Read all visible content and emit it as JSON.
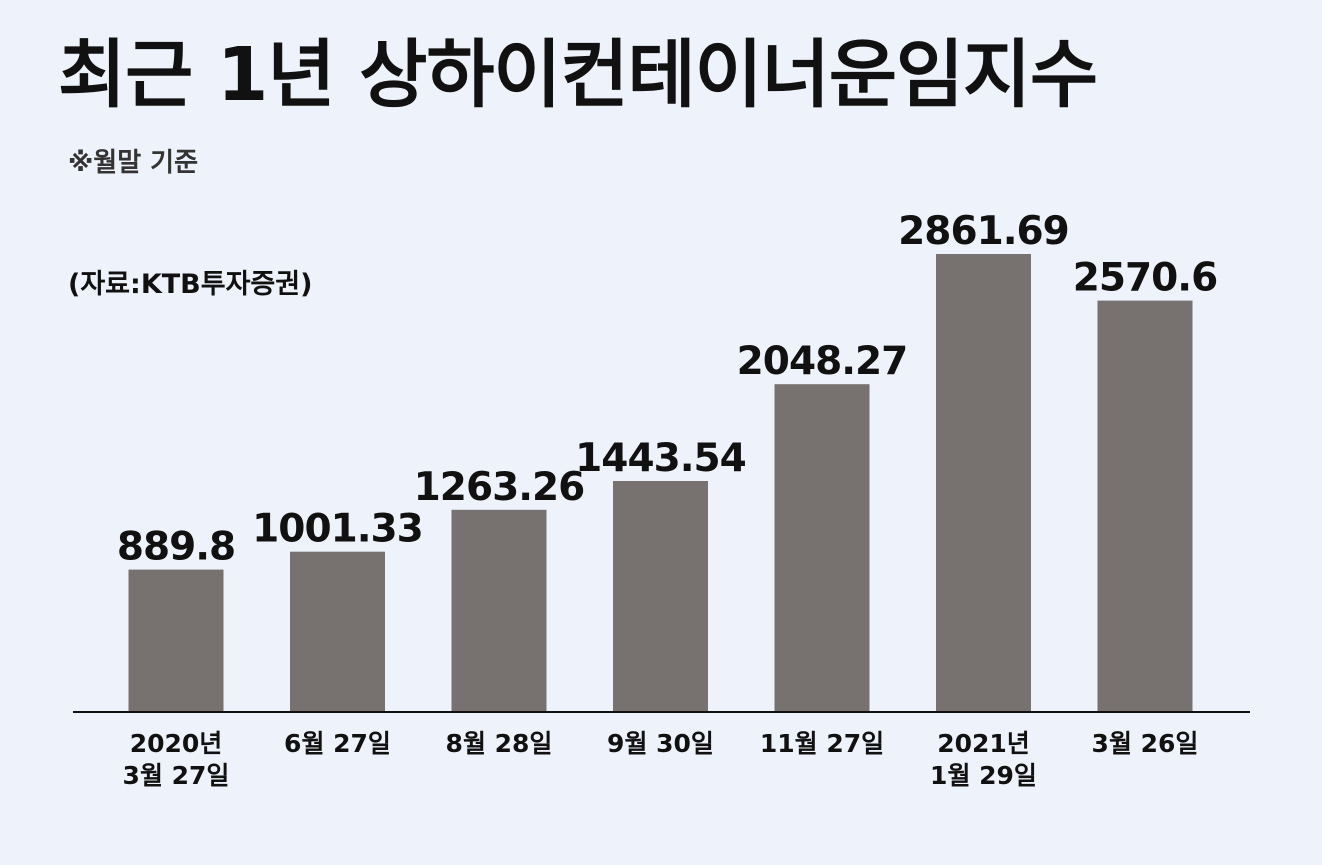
{
  "header": {
    "title": "최근 1년 상하이컨테이너운임지수",
    "subtitle": "※월말 기준",
    "source": "(자료:KTB투자증권)"
  },
  "colors": {
    "background": "#eef2fb",
    "bar": "#777170",
    "text": "#111111"
  },
  "chart_data": {
    "type": "bar",
    "title": "최근 1년 상하이컨테이너운임지수",
    "subtitle": "※월말 기준",
    "xlabel": "",
    "ylabel": "",
    "ylim": [
      0,
      3000
    ],
    "grid": false,
    "legend": "none",
    "categories": [
      [
        "2020년",
        "3월 27일"
      ],
      [
        "6월 27일"
      ],
      [
        "8월 28일"
      ],
      [
        "9월 30일"
      ],
      [
        "11월 27일"
      ],
      [
        "2021년",
        "1월 29일"
      ],
      [
        "3월 26일"
      ]
    ],
    "values": [
      889.8,
      1001.33,
      1263.26,
      1443.54,
      2048.27,
      2861.69,
      2570.6
    ],
    "value_labels": [
      "889.8",
      "1001.33",
      "1263.26",
      "1443.54",
      "2048.27",
      "2861.69",
      "2570.6"
    ]
  }
}
